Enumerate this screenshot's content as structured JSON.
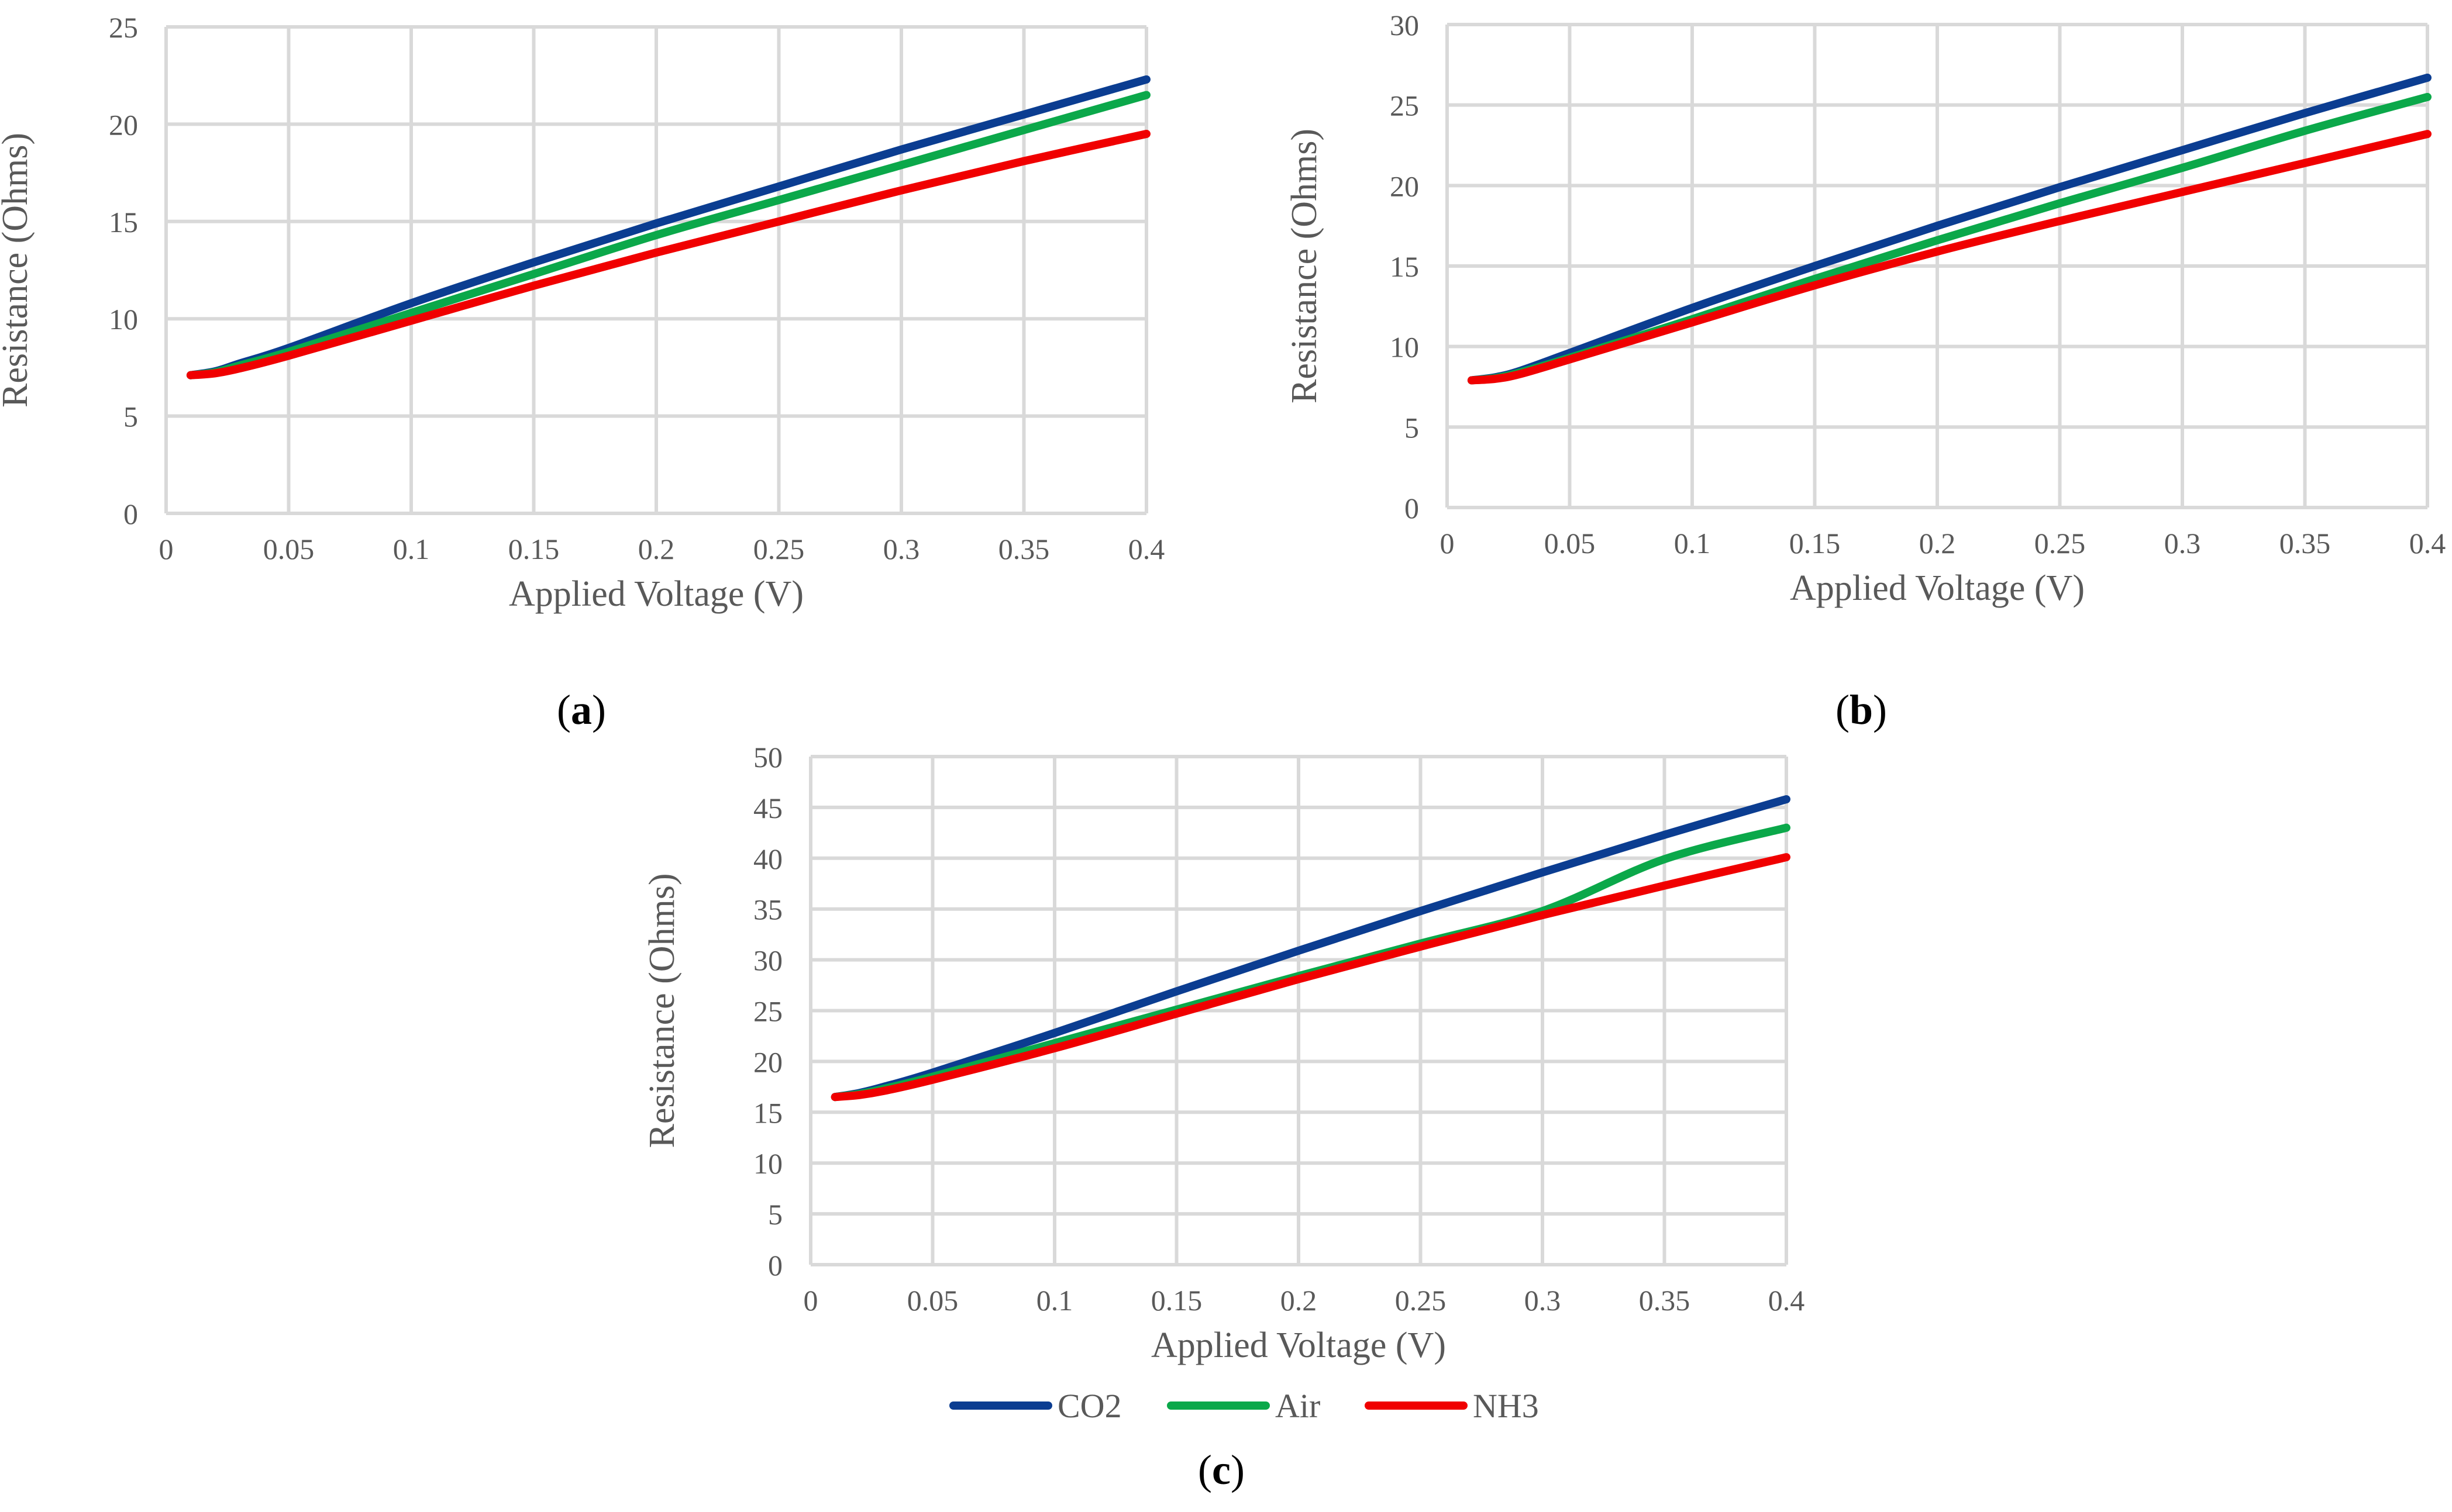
{
  "colors": {
    "CO2": "#0b3d91",
    "Air": "#0ba84a",
    "NH3": "#f00000",
    "grid": "#d9d9d9",
    "text": "#595959"
  },
  "legend": {
    "items": [
      {
        "name": "CO2",
        "color": "#0b3d91"
      },
      {
        "name": "Air",
        "color": "#0ba84a"
      },
      {
        "name": "NH3",
        "color": "#f00000"
      }
    ]
  },
  "chart_data": [
    {
      "type": "line",
      "caption_open": "(",
      "caption_letter": "a",
      "caption_close": ")",
      "xlabel": "Applied Voltage (V)",
      "ylabel": "Resistance (Ohms)",
      "xlim": [
        0,
        0.4
      ],
      "ylim": [
        0,
        25
      ],
      "xticks": [
        "0",
        "0.05",
        "0.1",
        "0.15",
        "0.2",
        "0.25",
        "0.3",
        "0.35",
        "0.4"
      ],
      "yticks": [
        "0",
        "5",
        "10",
        "15",
        "20",
        "25"
      ],
      "grid": true,
      "x": [
        0.01,
        0.02,
        0.03,
        0.05,
        0.1,
        0.15,
        0.2,
        0.25,
        0.3,
        0.35,
        0.4
      ],
      "series": [
        {
          "name": "CO2",
          "values": [
            7.1,
            7.3,
            7.7,
            8.5,
            10.8,
            12.9,
            14.9,
            16.8,
            18.7,
            20.5,
            22.3
          ]
        },
        {
          "name": "Air",
          "values": [
            7.1,
            7.25,
            7.6,
            8.3,
            10.3,
            12.3,
            14.3,
            16.1,
            17.9,
            19.7,
            21.5
          ]
        },
        {
          "name": "NH3",
          "values": [
            7.1,
            7.2,
            7.45,
            8.1,
            9.9,
            11.7,
            13.4,
            15.0,
            16.6,
            18.1,
            19.5
          ]
        }
      ]
    },
    {
      "type": "line",
      "caption_open": "(",
      "caption_letter": "b",
      "caption_close": ")",
      "xlabel": "Applied Voltage (V)",
      "ylabel": "Resistance (Ohms)",
      "xlim": [
        0,
        0.4
      ],
      "ylim": [
        0,
        30
      ],
      "xticks": [
        "0",
        "0.05",
        "0.1",
        "0.15",
        "0.2",
        "0.25",
        "0.3",
        "0.35",
        "0.4"
      ],
      "yticks": [
        "0",
        "5",
        "10",
        "15",
        "20",
        "25",
        "30"
      ],
      "grid": true,
      "x": [
        0.01,
        0.02,
        0.03,
        0.05,
        0.1,
        0.15,
        0.2,
        0.25,
        0.3,
        0.35,
        0.4
      ],
      "series": [
        {
          "name": "CO2",
          "values": [
            7.9,
            8.1,
            8.5,
            9.6,
            12.4,
            15.0,
            17.5,
            19.9,
            22.2,
            24.5,
            26.7
          ]
        },
        {
          "name": "Air",
          "values": [
            7.9,
            8.05,
            8.4,
            9.3,
            11.7,
            14.2,
            16.6,
            18.9,
            21.1,
            23.4,
            25.5
          ]
        },
        {
          "name": "NH3",
          "values": [
            7.9,
            8.0,
            8.3,
            9.2,
            11.5,
            13.8,
            15.9,
            17.8,
            19.6,
            21.4,
            23.2
          ]
        }
      ]
    },
    {
      "type": "line",
      "caption_open": "(",
      "caption_letter": "c",
      "caption_close": ")",
      "xlabel": "Applied Voltage (V)",
      "ylabel": "Resistance (Ohms)",
      "xlim": [
        0,
        0.4
      ],
      "ylim": [
        0,
        50
      ],
      "xticks": [
        "0",
        "0.05",
        "0.1",
        "0.15",
        "0.2",
        "0.25",
        "0.3",
        "0.35",
        "0.4"
      ],
      "yticks": [
        "0",
        "5",
        "10",
        "15",
        "20",
        "25",
        "30",
        "35",
        "40",
        "45",
        "50"
      ],
      "grid": true,
      "x": [
        0.01,
        0.02,
        0.03,
        0.05,
        0.1,
        0.15,
        0.2,
        0.25,
        0.3,
        0.35,
        0.4
      ],
      "series": [
        {
          "name": "CO2",
          "values": [
            16.5,
            16.9,
            17.5,
            18.9,
            22.8,
            26.9,
            30.9,
            34.8,
            38.6,
            42.3,
            45.8
          ]
        },
        {
          "name": "Air",
          "values": [
            16.5,
            16.8,
            17.3,
            18.5,
            21.8,
            25.1,
            28.4,
            31.6,
            34.8,
            39.9,
            43.0
          ]
        },
        {
          "name": "NH3",
          "values": [
            16.5,
            16.7,
            17.1,
            18.2,
            21.3,
            24.7,
            28.1,
            31.3,
            34.4,
            37.3,
            40.1
          ]
        }
      ]
    }
  ]
}
